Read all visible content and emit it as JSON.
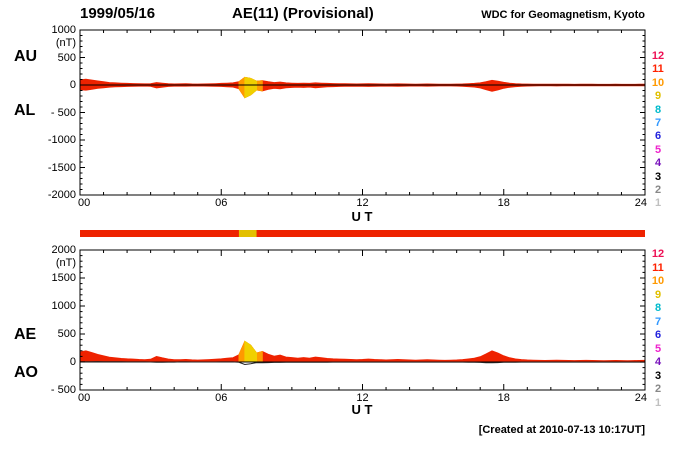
{
  "header": {
    "date": "1999/05/16",
    "title": "AE(11) (Provisional)",
    "source": "WDC for Geomagnetism, Kyoto"
  },
  "footer": {
    "created": "[Created at 2010-07-13 10:17UT]"
  },
  "colors": {
    "data_red": "#ee2200",
    "highlight_orange": "#ff9900",
    "highlight_yellow": "#f0d000",
    "zero_line": "#000000",
    "ao_line": "#222222"
  },
  "panels": {
    "top": {
      "left_labels": [
        "AU",
        "AL"
      ],
      "unit": "(nT)",
      "x_label": "U T",
      "y_tick_labels": [
        "1000",
        "500",
        "0",
        "- 500",
        "-1000",
        "-1500",
        "-2000"
      ],
      "y_tick_values": [
        1000,
        500,
        0,
        -500,
        -1000,
        -1500,
        -2000
      ],
      "x_tick_labels": [
        "00",
        "06",
        "12",
        "18",
        "24"
      ],
      "x_tick_hours": [
        0,
        6,
        12,
        18,
        24
      ],
      "ylim": [
        -2000,
        1000
      ]
    },
    "bottom": {
      "left_labels": [
        "AE",
        "AO"
      ],
      "unit": "(nT)",
      "x_label": "U T",
      "y_tick_labels": [
        "2000",
        "1500",
        "1000",
        "500",
        "0",
        "- 500"
      ],
      "y_tick_values": [
        2000,
        1500,
        1000,
        500,
        0,
        -500
      ],
      "x_tick_labels": [
        "00",
        "06",
        "12",
        "18",
        "24"
      ],
      "x_tick_hours": [
        0,
        6,
        12,
        18,
        24
      ],
      "ylim": [
        -500,
        2000
      ]
    }
  },
  "station_count_scale": [
    {
      "count": "12",
      "color": "#ee1155"
    },
    {
      "count": "11",
      "color": "#ff2200"
    },
    {
      "count": "10",
      "color": "#ff9900"
    },
    {
      "count": "9",
      "color": "#e0c000"
    },
    {
      "count": "8",
      "color": "#00bbcc"
    },
    {
      "count": "7",
      "color": "#3399ff"
    },
    {
      "count": "6",
      "color": "#2222dd"
    },
    {
      "count": "5",
      "color": "#ee22cc"
    },
    {
      "count": "4",
      "color": "#7711bb"
    },
    {
      "count": "3",
      "color": "#000000"
    },
    {
      "count": "2",
      "color": "#888888"
    },
    {
      "count": "1",
      "color": "#c0c0c0"
    }
  ],
  "status_bar": {
    "base_color": "#ee2200",
    "segments": [
      {
        "start_hour": 6.75,
        "end_hour": 7.5,
        "color": "#e3c000"
      }
    ]
  },
  "chart_data": [
    {
      "type": "area",
      "panel": "top",
      "title": "AU and AL auroral electrojet indices, 1999/05/16",
      "xlabel": "U T",
      "ylabel": "(nT)",
      "xlim_hours": [
        0,
        24
      ],
      "ylim": [
        -2000,
        1000
      ],
      "x_ticks_hours": [
        0,
        6,
        12,
        18,
        24
      ],
      "x_start_hour": 0,
      "x_step_hour": 0.25,
      "grid": false,
      "highlight_orange_hours": [
        6.75,
        7.75
      ],
      "highlight_yellow_hours": [
        7.0,
        7.5
      ],
      "series": [
        {
          "name": "AU",
          "values": [
            95,
            105,
            90,
            75,
            60,
            45,
            40,
            35,
            30,
            28,
            25,
            22,
            25,
            45,
            35,
            25,
            20,
            22,
            25,
            20,
            18,
            20,
            22,
            25,
            30,
            35,
            40,
            60,
            140,
            120,
            70,
            80,
            60,
            45,
            55,
            40,
            35,
            30,
            35,
            30,
            40,
            35,
            30,
            28,
            25,
            25,
            22,
            20,
            22,
            25,
            22,
            20,
            18,
            20,
            22,
            20,
            18,
            16,
            18,
            20,
            18,
            16,
            15,
            16,
            18,
            20,
            25,
            30,
            40,
            60,
            85,
            70,
            50,
            35,
            25,
            20,
            18,
            16,
            15,
            14,
            15,
            16,
            15,
            14,
            13,
            14,
            15,
            14,
            13,
            12,
            13,
            14,
            13,
            12,
            13,
            14,
            15
          ]
        },
        {
          "name": "AL",
          "values": [
            -85,
            -95,
            -80,
            -60,
            -50,
            -40,
            -35,
            -30,
            -28,
            -25,
            -22,
            -20,
            -25,
            -55,
            -40,
            -28,
            -22,
            -20,
            -22,
            -20,
            -18,
            -20,
            -22,
            -25,
            -28,
            -32,
            -38,
            -70,
            -230,
            -180,
            -90,
            -110,
            -80,
            -60,
            -70,
            -50,
            -45,
            -40,
            -45,
            -38,
            -50,
            -42,
            -35,
            -30,
            -28,
            -26,
            -24,
            -22,
            -25,
            -28,
            -25,
            -22,
            -20,
            -22,
            -24,
            -22,
            -20,
            -18,
            -20,
            -22,
            -20,
            -18,
            -16,
            -18,
            -20,
            -24,
            -30,
            -38,
            -55,
            -85,
            -115,
            -90,
            -60,
            -42,
            -30,
            -24,
            -20,
            -18,
            -16,
            -15,
            -16,
            -18,
            -16,
            -15,
            -14,
            -15,
            -16,
            -15,
            -14,
            -13,
            -14,
            -15,
            -14,
            -13,
            -14,
            -15,
            -16
          ]
        }
      ]
    },
    {
      "type": "area",
      "panel": "bottom",
      "title": "AE and AO auroral electrojet indices, 1999/05/16",
      "xlabel": "U T",
      "ylabel": "(nT)",
      "xlim_hours": [
        0,
        24
      ],
      "ylim": [
        -500,
        2000
      ],
      "x_ticks_hours": [
        0,
        6,
        12,
        18,
        24
      ],
      "x_start_hour": 0,
      "x_step_hour": 0.25,
      "grid": false,
      "highlight_orange_hours": [
        6.75,
        7.75
      ],
      "highlight_yellow_hours": [
        7.0,
        7.5
      ],
      "series": [
        {
          "name": "AE",
          "values": [
            180,
            200,
            170,
            135,
            110,
            85,
            75,
            65,
            58,
            53,
            47,
            42,
            50,
            100,
            75,
            53,
            42,
            42,
            47,
            40,
            36,
            40,
            44,
            50,
            58,
            67,
            78,
            130,
            370,
            300,
            160,
            190,
            140,
            105,
            125,
            90,
            80,
            70,
            80,
            68,
            90,
            77,
            65,
            58,
            53,
            51,
            46,
            42,
            47,
            53,
            47,
            42,
            38,
            42,
            46,
            42,
            38,
            34,
            38,
            42,
            38,
            34,
            31,
            34,
            38,
            44,
            55,
            68,
            95,
            145,
            200,
            160,
            110,
            77,
            55,
            44,
            38,
            34,
            31,
            29,
            31,
            34,
            31,
            29,
            27,
            29,
            31,
            29,
            27,
            25,
            27,
            29,
            27,
            25,
            27,
            29,
            31
          ]
        },
        {
          "name": "AO",
          "values": [
            5,
            5,
            5,
            8,
            5,
            3,
            3,
            3,
            1,
            2,
            2,
            1,
            0,
            -5,
            -3,
            -2,
            -1,
            1,
            2,
            0,
            0,
            0,
            0,
            0,
            1,
            2,
            1,
            -5,
            -45,
            -30,
            -10,
            -15,
            -10,
            -8,
            -8,
            -5,
            -5,
            -5,
            -5,
            -4,
            -5,
            -4,
            -3,
            -1,
            -2,
            -1,
            -1,
            -1,
            -2,
            -2,
            -2,
            -1,
            -1,
            -1,
            -1,
            -1,
            -1,
            -1,
            -1,
            -1,
            -1,
            -1,
            -1,
            -1,
            -1,
            -2,
            -3,
            -4,
            -8,
            -13,
            -15,
            -10,
            -5,
            -4,
            -3,
            -2,
            -1,
            -1,
            -1,
            -1,
            -1,
            -1,
            -1,
            -1,
            -1,
            -1,
            -1,
            -1,
            -1,
            -1,
            -1,
            -1,
            -1,
            -1,
            -1,
            -1,
            -1
          ]
        }
      ]
    }
  ]
}
